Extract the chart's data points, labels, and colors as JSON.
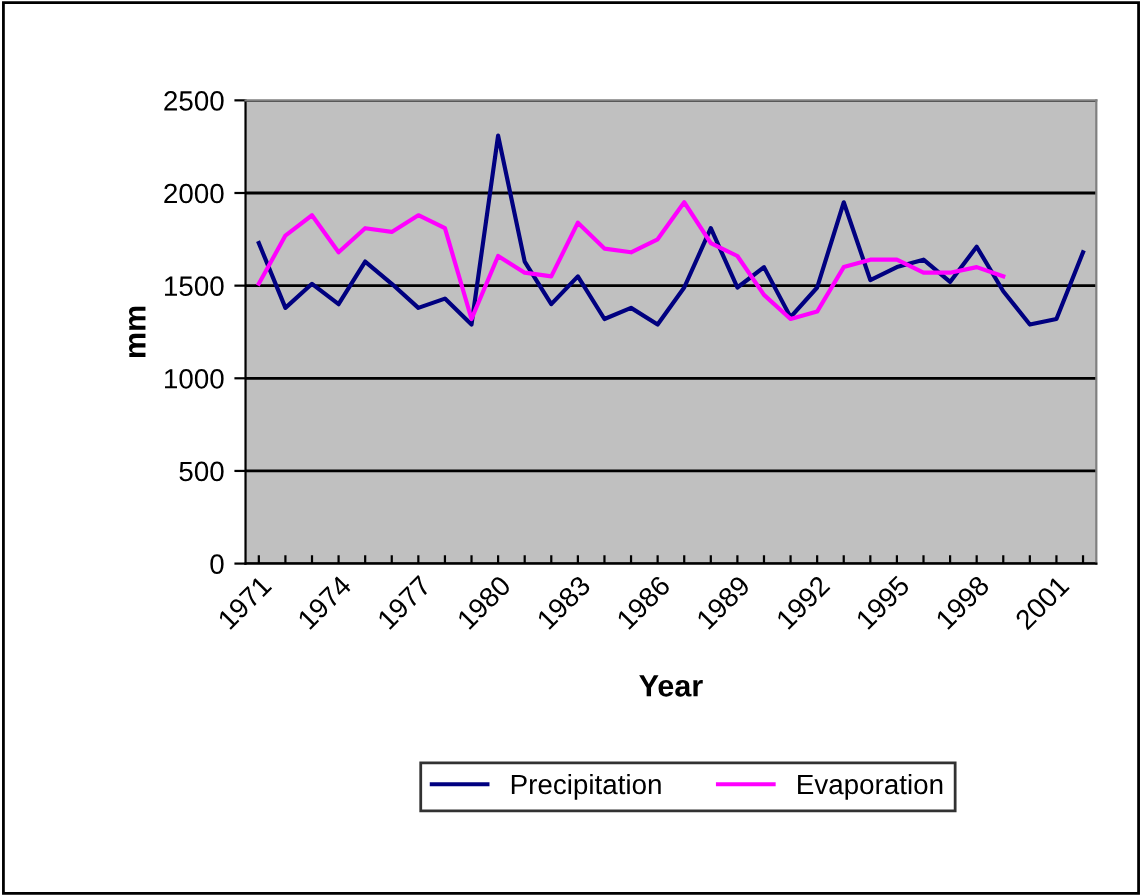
{
  "chart_data": {
    "type": "line",
    "xlabel": "Year",
    "ylabel": "mm",
    "categories": [
      "1971",
      null,
      null,
      "1974",
      null,
      null,
      "1977",
      null,
      null,
      "1980",
      null,
      null,
      "1983",
      null,
      null,
      "1986",
      null,
      null,
      "1989",
      null,
      null,
      "1992",
      null,
      null,
      "1995",
      null,
      null,
      "1998",
      null,
      null,
      "2001",
      null
    ],
    "series": [
      {
        "name": "Precipitation",
        "color": "#000080",
        "values": [
          1730,
          1380,
          1510,
          1400,
          1630,
          1510,
          1380,
          1430,
          1290,
          2310,
          1630,
          1400,
          1550,
          1320,
          1380,
          1290,
          1490,
          1810,
          1490,
          1600,
          1330,
          1490,
          1950,
          1530,
          1600,
          1640,
          1520,
          1710,
          1470,
          1290,
          1320,
          1680
        ]
      },
      {
        "name": "Evaporation",
        "color": "#ff00ff",
        "values": [
          1510,
          1770,
          1880,
          1680,
          1810,
          1790,
          1880,
          1810,
          1320,
          1660,
          1570,
          1550,
          1840,
          1700,
          1680,
          1750,
          1950,
          1730,
          1660,
          1450,
          1320,
          1360,
          1600,
          1640,
          1640,
          1570,
          1570,
          1600,
          1550,
          null,
          null,
          null
        ]
      }
    ],
    "ylim": [
      0,
      2500
    ],
    "yticks": [
      0,
      500,
      1000,
      1500,
      2000,
      2500
    ],
    "grid": "y",
    "legend": "bottom",
    "marker": "none",
    "line_style": "solid"
  }
}
